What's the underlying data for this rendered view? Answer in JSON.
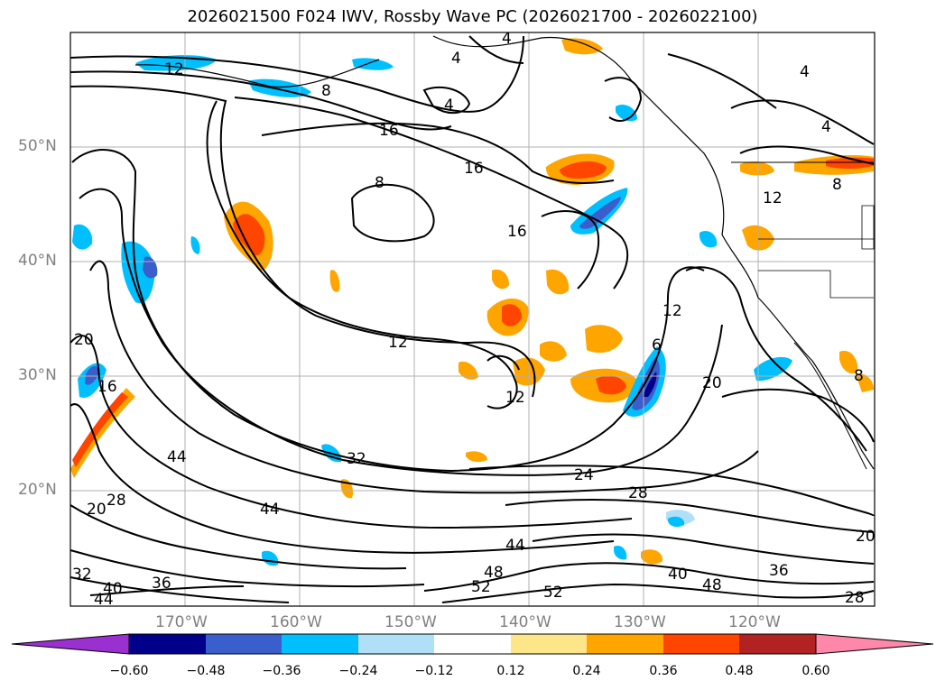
{
  "title": "2026021500 F024 IWV, Rossby Wave PC (2026021700 - 2026022100)",
  "lat_labels": [
    "50°N",
    "40°N",
    "30°N",
    "20°N"
  ],
  "lon_labels": [
    "170°W",
    "160°W",
    "150°W",
    "140°W",
    "130°W",
    "120°W"
  ],
  "colorbar": {
    "ticks": [
      "−0.60",
      "−0.48",
      "−0.36",
      "−0.24",
      "−0.12",
      "0.12",
      "0.24",
      "0.36",
      "0.48",
      "0.60"
    ],
    "colors": [
      "#9b30d0",
      "#00008b",
      "#3a5fcd",
      "#00bfff",
      "#b0e0f8",
      "#ffffff",
      "#fde68a",
      "#ffa500",
      "#ff4500",
      "#b22222",
      "#ff88aa"
    ]
  },
  "contour_labels": [
    "12",
    "8",
    "4",
    "4",
    "4",
    "4",
    "4",
    "16",
    "16",
    "8",
    "12",
    "8",
    "16",
    "12",
    "12",
    "12",
    "6",
    "20",
    "20",
    "16",
    "44",
    "32",
    "24",
    "28",
    "44",
    "44",
    "48",
    "52",
    "52",
    "40",
    "48",
    "36",
    "36",
    "40",
    "44",
    "32",
    "20",
    "28",
    "8",
    "20",
    "28"
  ]
}
